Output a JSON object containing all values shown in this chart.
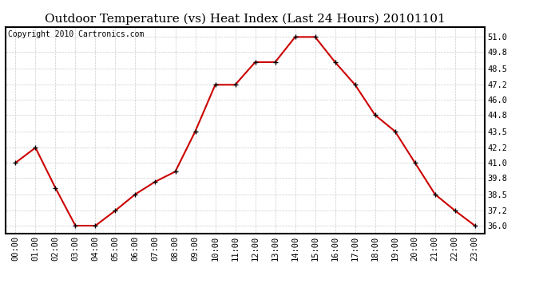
{
  "title": "Outdoor Temperature (vs) Heat Index (Last 24 Hours) 20101101",
  "copyright_text": "Copyright 2010 Cartronics.com",
  "hours": [
    "00:00",
    "01:00",
    "02:00",
    "03:00",
    "04:00",
    "05:00",
    "06:00",
    "07:00",
    "08:00",
    "09:00",
    "10:00",
    "11:00",
    "12:00",
    "13:00",
    "14:00",
    "15:00",
    "16:00",
    "17:00",
    "18:00",
    "19:00",
    "20:00",
    "21:00",
    "22:00",
    "23:00"
  ],
  "values": [
    41.0,
    42.2,
    39.0,
    36.0,
    36.0,
    37.2,
    38.5,
    39.5,
    40.3,
    43.5,
    47.2,
    47.2,
    49.0,
    49.0,
    51.0,
    51.0,
    49.0,
    47.2,
    44.8,
    43.5,
    41.0,
    38.5,
    37.2,
    36.0
  ],
  "ylim_min": 35.4,
  "ylim_max": 51.8,
  "yticks": [
    36.0,
    37.2,
    38.5,
    39.8,
    41.0,
    42.2,
    43.5,
    44.8,
    46.0,
    47.2,
    48.5,
    49.8,
    51.0
  ],
  "line_color": "#cc0000",
  "marker": "+",
  "marker_color": "#000000",
  "marker_size": 5,
  "marker_linewidth": 1.0,
  "line_width": 1.5,
  "grid_color": "#cccccc",
  "grid_style": "--",
  "bg_color": "#ffffff",
  "title_fontsize": 11,
  "copyright_fontsize": 7,
  "tick_fontsize": 7.5,
  "title_font": "DejaVu Serif",
  "label_font": "DejaVu Sans Mono"
}
